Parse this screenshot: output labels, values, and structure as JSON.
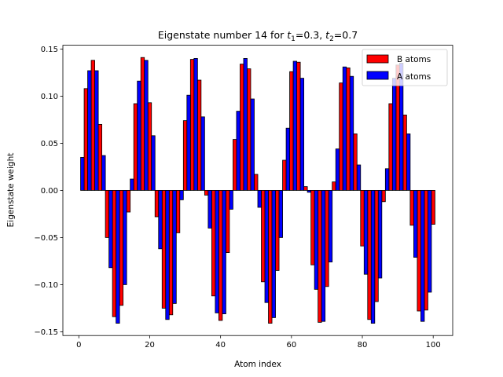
{
  "chart_data": {
    "type": "bar",
    "title_parts": {
      "prefix": "Eigenstate number 14 for ",
      "t1_var": "t",
      "t1_sub": "1",
      "t1_val": "=0.3, ",
      "t2_var": "t",
      "t2_sub": "2",
      "t2_val": "=0.7"
    },
    "xlabel": "Atom index",
    "ylabel": "Eigenstate weight",
    "xlim": [
      -4.5,
      105.5
    ],
    "ylim": [
      -0.154,
      0.154
    ],
    "x_ticks": [
      0,
      20,
      40,
      60,
      80,
      100
    ],
    "x_tick_labels": [
      "0",
      "20",
      "40",
      "60",
      "80",
      "100"
    ],
    "y_ticks": [
      -0.15,
      -0.1,
      -0.05,
      0.0,
      0.05,
      0.1,
      0.15
    ],
    "y_tick_labels": [
      "−0.15",
      "−0.10",
      "−0.05",
      "0.00",
      "0.05",
      "0.10",
      "0.15"
    ],
    "grid": false,
    "legend_position": "top-right",
    "bar_width": 1,
    "series": [
      {
        "name": "B atoms",
        "color": "#ff0000",
        "x": [
          2,
          4,
          6,
          8,
          10,
          12,
          14,
          16,
          18,
          20,
          22,
          24,
          26,
          28,
          30,
          32,
          34,
          36,
          38,
          40,
          42,
          44,
          46,
          48,
          50,
          52,
          54,
          56,
          58,
          60,
          62,
          64,
          66,
          68,
          70,
          72,
          74,
          76,
          78,
          80,
          82,
          84,
          86,
          88,
          90,
          92,
          94,
          96,
          98,
          100
        ],
        "values": [
          0.108,
          0.138,
          0.07,
          -0.05,
          -0.134,
          -0.122,
          -0.023,
          0.092,
          0.141,
          0.093,
          -0.028,
          -0.125,
          -0.132,
          -0.045,
          0.074,
          0.139,
          0.117,
          -0.005,
          -0.112,
          -0.138,
          -0.066,
          0.054,
          0.134,
          0.129,
          0.017,
          -0.097,
          -0.141,
          -0.085,
          0.032,
          0.126,
          0.136,
          0.004,
          -0.079,
          -0.14,
          -0.102,
          0.009,
          0.114,
          0.13,
          0.06,
          -0.059,
          -0.137,
          -0.118,
          -0.012,
          0.092,
          0.133,
          0.08,
          -0.037,
          -0.128,
          -0.127,
          -0.036
        ]
      },
      {
        "name": "A atoms",
        "color": "#0000ff",
        "x": [
          1,
          3,
          5,
          7,
          9,
          11,
          13,
          15,
          17,
          19,
          21,
          23,
          25,
          27,
          29,
          31,
          33,
          35,
          37,
          39,
          41,
          43,
          45,
          47,
          49,
          51,
          53,
          55,
          57,
          59,
          61,
          63,
          65,
          67,
          69,
          71,
          73,
          75,
          77,
          79,
          81,
          83,
          85,
          87,
          89,
          91,
          93,
          95,
          97,
          99
        ],
        "values": [
          0.035,
          0.127,
          0.127,
          0.037,
          -0.082,
          -0.141,
          -0.1,
          0.012,
          0.116,
          0.138,
          0.058,
          -0.062,
          -0.137,
          -0.12,
          -0.01,
          0.101,
          0.14,
          0.078,
          -0.04,
          -0.13,
          -0.131,
          -0.02,
          0.084,
          0.14,
          0.097,
          -0.018,
          -0.119,
          -0.135,
          -0.05,
          0.066,
          0.137,
          0.119,
          -0.002,
          -0.105,
          -0.139,
          -0.076,
          0.044,
          0.131,
          0.121,
          0.027,
          -0.089,
          -0.141,
          -0.093,
          0.023,
          0.119,
          0.135,
          0.06,
          -0.071,
          -0.139,
          -0.108
        ]
      }
    ]
  }
}
